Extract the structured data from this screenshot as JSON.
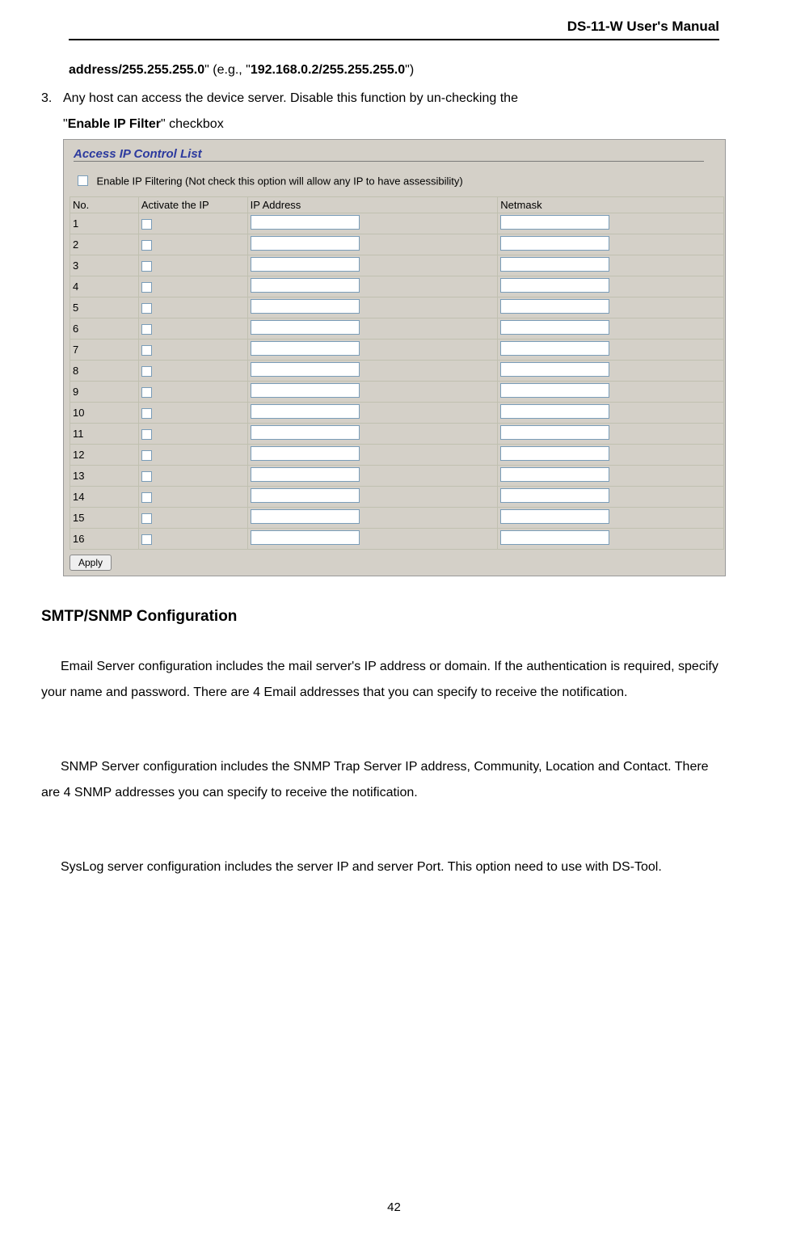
{
  "header": {
    "title": "DS-11-W User's Manual"
  },
  "list": {
    "item2_prefix": "address/255.255.255.0",
    "item2_mid": "\" (e.g., \"",
    "item2_bold": "192.168.0.2/255.255.255.0",
    "item2_tail": "\")",
    "item3_num": "3.",
    "item3_line1": "Any host can access the device server.    Disable this function by un-checking the",
    "item3_line2_q1": "\"",
    "item3_line2_bold": "Enable IP Filter",
    "item3_line2_tail": "\" checkbox"
  },
  "panel": {
    "title": "Access IP Control List",
    "enable_label": "Enable IP Filtering (Not check this option will allow any IP to have assessibility)",
    "columns": {
      "no": "No.",
      "activate": "Activate the IP",
      "ip": "IP Address",
      "netmask": "Netmask"
    },
    "rows": [
      "1",
      "2",
      "3",
      "4",
      "5",
      "6",
      "7",
      "8",
      "9",
      "10",
      "11",
      "12",
      "13",
      "14",
      "15",
      "16"
    ],
    "apply": "Apply",
    "colors": {
      "panel_bg": "#d4d0c8",
      "title_color": "#2c3a9e",
      "border": "#c0c0b0",
      "input_border": "#7a9db9"
    }
  },
  "section": {
    "heading": "SMTP/SNMP Configuration"
  },
  "paragraphs": {
    "p1": "Email Server configuration includes the mail server's IP address or domain.    If the authentication is required, specify your name and password.    There are 4 Email addresses that you can specify to receive the notification.",
    "p2": "SNMP Server configuration includes the SNMP Trap Server IP address, Community, Location and Contact.    There are 4 SNMP addresses you can specify to receive the notification.",
    "p3": "SysLog server configuration includes the server IP and server Port.    This option need to use with DS-Tool."
  },
  "page_number": "42"
}
